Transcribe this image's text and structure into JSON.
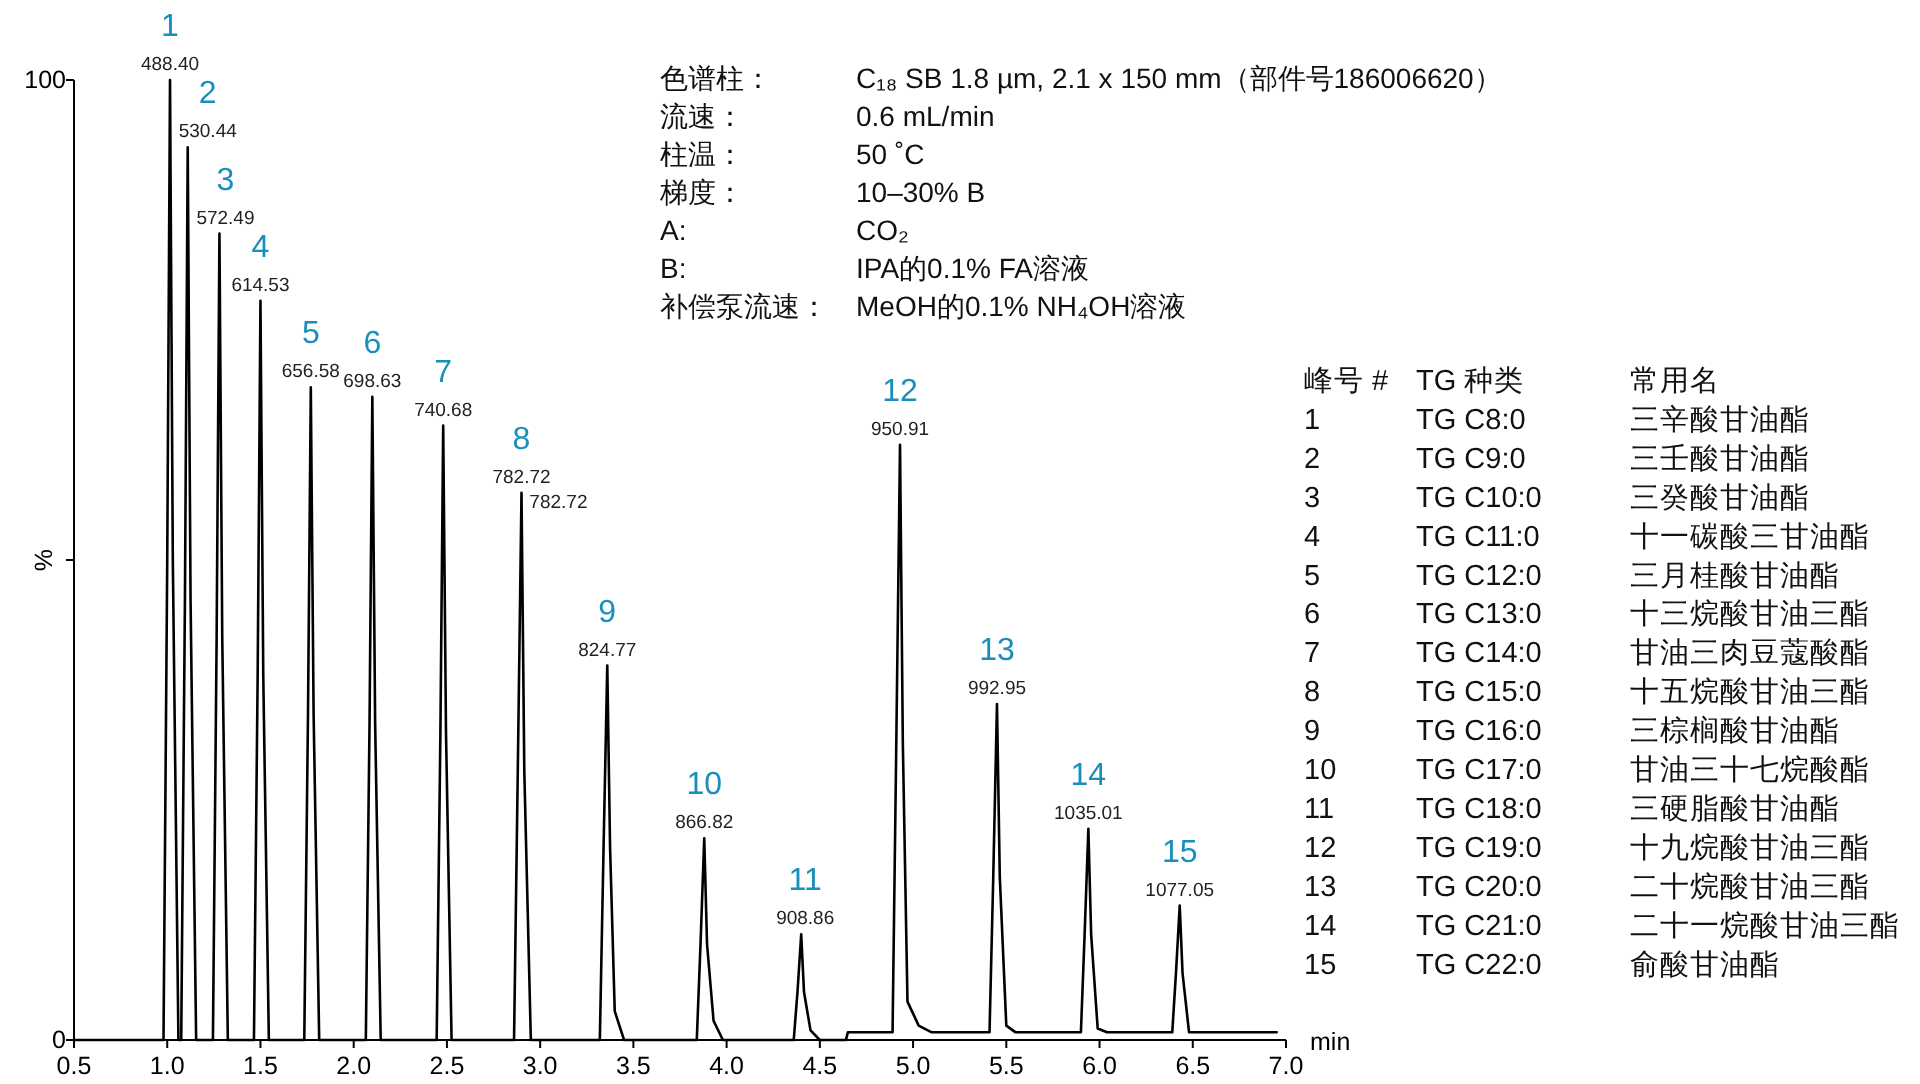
{
  "chart_data": {
    "type": "line",
    "xlabel": "min",
    "ylabel": "%",
    "xlim": [
      0.5,
      7.0
    ],
    "ylim": [
      0,
      100
    ],
    "xticks": [
      {
        "value": 0.5,
        "label": "0.5"
      },
      {
        "value": 1,
        "label": "1.0"
      },
      {
        "value": 1.5,
        "label": "1.5"
      },
      {
        "value": 2,
        "label": "2.0"
      },
      {
        "value": 2.5,
        "label": "2.5"
      },
      {
        "value": 3,
        "label": "3.0"
      },
      {
        "value": 3.5,
        "label": "3.5"
      },
      {
        "value": 4,
        "label": "4.0"
      },
      {
        "value": 4.5,
        "label": "4.5"
      },
      {
        "value": 5,
        "label": "5.0"
      },
      {
        "value": 5.5,
        "label": "5.5"
      },
      {
        "value": 6,
        "label": "6.0"
      },
      {
        "value": 6.5,
        "label": "6.5"
      },
      {
        "value": 7,
        "label": "7.0"
      }
    ],
    "yticks": [
      0,
      {
        "value": 50,
        "label": null
      },
      100
    ],
    "series": [
      {
        "color": "#000000",
        "x": [
          0.5,
          0.95,
          0.98,
          1.0,
          1.015,
          1.03,
          1.06,
          1.075,
          1.095,
          1.11,
          1.125,
          1.155,
          1.245,
          1.265,
          1.28,
          1.295,
          1.325,
          1.465,
          1.485,
          1.5,
          1.515,
          1.545,
          1.735,
          1.755,
          1.77,
          1.785,
          1.815,
          2.065,
          2.085,
          2.1,
          2.115,
          2.145,
          2.445,
          2.465,
          2.48,
          2.495,
          2.525,
          2.86,
          2.88,
          2.9,
          2.915,
          2.95,
          3.32,
          3.34,
          3.36,
          3.375,
          3.4,
          3.45,
          3.84,
          3.86,
          3.88,
          3.895,
          3.93,
          3.98,
          4.36,
          4.38,
          4.4,
          4.415,
          4.45,
          4.5,
          4.64,
          4.65,
          4.89,
          4.91,
          4.93,
          4.945,
          4.97,
          5.03,
          5.1,
          5.41,
          5.43,
          5.45,
          5.465,
          5.5,
          5.55,
          5.9,
          5.92,
          5.94,
          5.955,
          5.99,
          6.04,
          6.39,
          6.41,
          6.43,
          6.445,
          6.48,
          6.95
        ],
        "values": [
          0,
          0,
          0,
          50,
          100,
          50,
          0,
          0,
          46,
          93,
          46,
          0,
          0,
          42,
          84,
          42,
          0,
          0,
          38,
          77,
          38,
          0,
          0,
          34,
          68,
          34,
          0,
          0,
          33,
          67,
          33,
          0,
          0,
          32,
          64,
          32,
          0,
          0,
          28,
          57,
          28,
          0,
          0,
          20,
          39,
          20,
          3,
          0,
          0,
          10,
          21,
          10,
          2,
          0,
          0,
          5,
          11,
          5,
          1,
          0,
          0,
          0.8,
          0.8,
          31,
          62,
          31,
          4,
          1.5,
          0.8,
          0.8,
          17,
          35,
          17,
          1.5,
          0.8,
          0.8,
          11,
          22,
          11,
          1.2,
          0.8,
          0.8,
          7,
          14,
          7,
          0.8,
          0.8
        ]
      }
    ],
    "annotations": [
      {
        "text": "1",
        "x": 1.015,
        "y": 100
      },
      {
        "text": "488.40",
        "x": 1.015,
        "y": 100
      },
      {
        "text": "2",
        "x": 1.11,
        "y": 93
      },
      {
        "text": "530.44",
        "x": 1.11,
        "y": 93
      },
      {
        "text": "3",
        "x": 1.28,
        "y": 84
      },
      {
        "text": "572.49",
        "x": 1.28,
        "y": 84
      },
      {
        "text": "4",
        "x": 1.5,
        "y": 77
      },
      {
        "text": "614.53",
        "x": 1.5,
        "y": 77
      },
      {
        "text": "5",
        "x": 1.77,
        "y": 68
      },
      {
        "text": "656.58",
        "x": 1.77,
        "y": 68
      },
      {
        "text": "6",
        "x": 2.1,
        "y": 67
      },
      {
        "text": "698.63",
        "x": 2.1,
        "y": 67
      },
      {
        "text": "7",
        "x": 2.48,
        "y": 64
      },
      {
        "text": "740.68",
        "x": 2.48,
        "y": 64
      },
      {
        "text": "8",
        "x": 2.9,
        "y": 57
      },
      {
        "text": "782.72",
        "x": 2.9,
        "y": 57
      },
      {
        "text": "9",
        "x": 3.36,
        "y": 39
      },
      {
        "text": "824.77",
        "x": 3.36,
        "y": 39
      },
      {
        "text": "10",
        "x": 3.88,
        "y": 21
      },
      {
        "text": "866.82",
        "x": 3.88,
        "y": 21
      },
      {
        "text": "11",
        "x": 4.4,
        "y": 11
      },
      {
        "text": "908.86",
        "x": 4.4,
        "y": 11
      },
      {
        "text": "12",
        "x": 4.93,
        "y": 62
      },
      {
        "text": "950.91",
        "x": 4.93,
        "y": 62
      },
      {
        "text": "13",
        "x": 5.45,
        "y": 35
      },
      {
        "text": "992.95",
        "x": 5.45,
        "y": 35
      },
      {
        "text": "14",
        "x": 5.94,
        "y": 22
      },
      {
        "text": "1035.01",
        "x": 5.94,
        "y": 22
      },
      {
        "text": "15",
        "x": 6.43,
        "y": 14
      },
      {
        "text": "1077.05",
        "x": 6.43,
        "y": 14
      },
      {
        "text": "782.72",
        "x": 2.91,
        "y": 55
      },
      "色谱柱：",
      "C₁₈ SB 1.8 µm, 2.1 x 150 mm（部件号186006620）",
      "流速：",
      "0.6 mL/min",
      "柱温：",
      "50 ˚C",
      "梯度：",
      "10–30% B",
      "A:",
      "CO₂",
      "B:",
      "IPA的0.1% FA溶液",
      "补偿泵流速：",
      "MeOH的0.1% NH₄OH溶液",
      "峰号 #",
      "TG 种类",
      "常用名",
      "1",
      "TG C8:0",
      "三辛酸甘油酯",
      "2",
      "TG C9:0",
      "三壬酸甘油酯",
      "3",
      "TG C10:0",
      "三癸酸甘油酯",
      "4",
      "TG C11:0",
      "十一碳酸三甘油酯",
      "5",
      "TG C12:0",
      "三月桂酸甘油酯",
      "6",
      "TG C13:0",
      "十三烷酸甘油三酯",
      "7",
      "TG C14:0",
      "甘油三肉豆蔻酸酯",
      "8",
      "TG C15:0",
      "十五烷酸甘油三酯",
      "9",
      "TG C16:0",
      "三棕榈酸甘油酯",
      "10",
      "TG C17:0",
      "甘油三十七烷酸酯",
      "11",
      "TG C18:0",
      "三硬脂酸甘油酯",
      "12",
      "TG C19:0",
      "十九烷酸甘油三酯",
      "13",
      "TG C20:0",
      "二十烷酸甘油三酯",
      "14",
      "TG C21:0",
      "二十一烷酸甘油三酯",
      "15",
      "TG C22:0",
      "俞酸甘油酯"
    ]
  }
}
